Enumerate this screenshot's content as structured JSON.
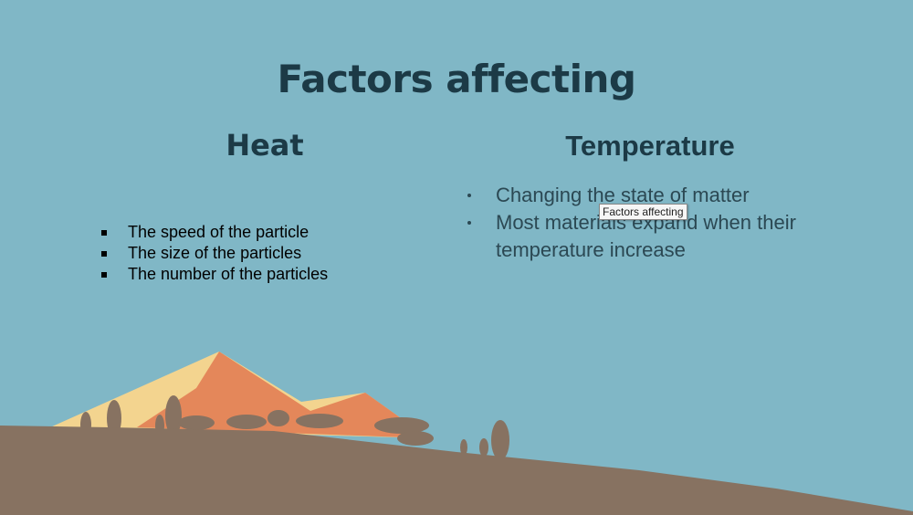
{
  "slide": {
    "title": "Factors affecting",
    "left": {
      "heading": "Heat",
      "bullets": [
        "The speed of the particle",
        "The size of the particles",
        "The number of the particles"
      ]
    },
    "right": {
      "heading": "Temperature",
      "bullets": [
        "Changing the state of matter",
        "Most materials expand when their temperature increase"
      ]
    },
    "tooltip": "Factors affecting"
  }
}
